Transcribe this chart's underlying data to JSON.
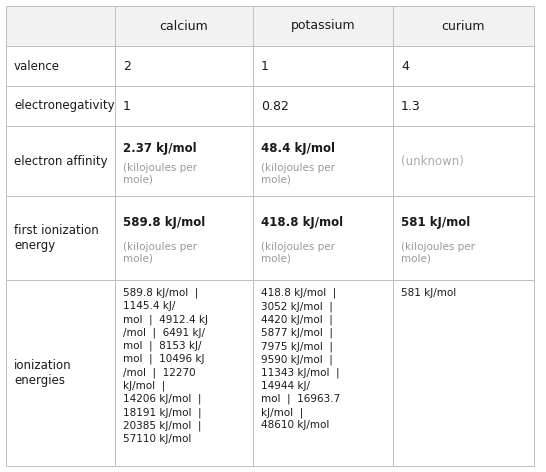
{
  "columns": [
    "",
    "calcium",
    "potassium",
    "curium"
  ],
  "header_color": "#f2f2f2",
  "bg_color": "#ffffff",
  "border_color": "#c0c0c0",
  "text_color_main": "#1a1a1a",
  "text_color_sub": "#999999",
  "text_color_unknown": "#aaaaaa",
  "figsize": [
    5.46,
    4.72
  ],
  "dpi": 100,
  "rows": [
    {
      "label": "valence",
      "cells": [
        "2",
        "1",
        "4"
      ],
      "type": "simple"
    },
    {
      "label": "electronegativity",
      "cells": [
        "1",
        "0.82",
        "1.3"
      ],
      "type": "simple"
    },
    {
      "label": "electron affinity",
      "cells_main": [
        "2.37 kJ/mol",
        "48.4 kJ/mol",
        "(unknown)"
      ],
      "cells_sub": [
        "(kilojoules per\nmole)",
        "(kilojoules per\nmole)",
        ""
      ],
      "cells_unknown": [
        false,
        false,
        true
      ],
      "type": "kj"
    },
    {
      "label": "first ionization\nenergy",
      "cells_main": [
        "589.8 kJ/mol",
        "418.8 kJ/mol",
        "581 kJ/mol"
      ],
      "cells_sub": [
        "(kilojoules per\nmole)",
        "(kilojoules per\nmole)",
        "(kilojoules per\nmole)"
      ],
      "cells_unknown": [
        false,
        false,
        false
      ],
      "type": "kj"
    },
    {
      "label": "ionization\nenergies",
      "cells": [
        "589.8 kJ/mol  |\n1145.4 kJ/\nmol  |  4912.4 kJ\n/mol  |  6491 kJ/\nmol  |  8153 kJ/\nmol  |  10496 kJ\n/mol  |  12270\nkJ/mol  |\n14206 kJ/mol  |\n18191 kJ/mol  |\n20385 kJ/mol  |\n57110 kJ/mol",
        "418.8 kJ/mol  |\n3052 kJ/mol  |\n4420 kJ/mol  |\n5877 kJ/mol  |\n7975 kJ/mol  |\n9590 kJ/mol  |\n11343 kJ/mol  |\n14944 kJ/\nmol  |  16963.7\nkJ/mol  |\n48610 kJ/mol",
        "581 kJ/mol"
      ],
      "type": "ionization"
    }
  ]
}
